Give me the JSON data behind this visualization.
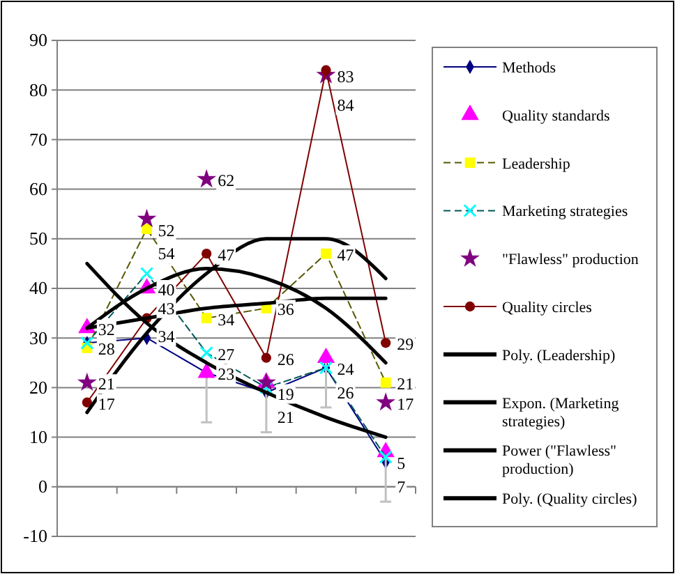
{
  "chart_data": {
    "type": "line",
    "categories": [
      null,
      null,
      null,
      null,
      null,
      null
    ],
    "ylim": [
      -10,
      90
    ],
    "yticks": [
      -10,
      0,
      10,
      20,
      30,
      40,
      50,
      60,
      70,
      80,
      90
    ],
    "grid": "y",
    "legend": "right",
    "series": [
      {
        "name": "Methods",
        "type": "line",
        "color": "#000080",
        "marker": "diamond",
        "line_style": "solid",
        "values": [
          29,
          30,
          23,
          19,
          24,
          5
        ],
        "value_labels": [
          null,
          null,
          null,
          "19",
          "24",
          "5"
        ]
      },
      {
        "name": "Quality standards",
        "type": "scatter",
        "color": "#ff00ff",
        "marker": "triangle",
        "values": [
          32,
          40,
          23,
          21,
          26,
          7
        ],
        "value_labels": [
          "32",
          "40",
          "23",
          "21",
          "26",
          "7"
        ],
        "errors": [
          null,
          null,
          [
            13,
            23
          ],
          [
            11,
            21
          ],
          [
            16,
            26
          ],
          [
            -3,
            7
          ]
        ]
      },
      {
        "name": "Leadership",
        "type": "line",
        "color": "#ffff00",
        "marker": "square",
        "line_style": "dashed",
        "values": [
          28,
          52,
          34,
          36,
          47,
          21
        ],
        "value_labels": [
          "28",
          "52",
          "34",
          "36",
          "47",
          "21"
        ]
      },
      {
        "name": "Marketing strategies",
        "type": "line",
        "color": "#00ffff",
        "marker": "cross",
        "line_style": "dashed",
        "values": [
          29,
          43,
          27,
          20,
          24,
          6
        ],
        "value_labels": [
          null,
          "43",
          "27",
          null,
          null,
          null
        ]
      },
      {
        "name": "\"Flawless\" production",
        "type": "scatter",
        "color": "#800080",
        "marker": "star",
        "values": [
          21,
          54,
          62,
          21,
          83,
          17
        ],
        "value_labels": [
          "21",
          "54",
          "62",
          null,
          "83",
          "17"
        ]
      },
      {
        "name": "Quality circles",
        "type": "line",
        "color": "#800000",
        "marker": "circle",
        "line_style": "solid",
        "values": [
          17,
          34,
          47,
          26,
          84,
          29
        ],
        "value_labels": [
          "17",
          "34",
          "47",
          "26",
          "84",
          "29"
        ]
      },
      {
        "name": "Poly. (Leadership)",
        "type": "line",
        "color": "#000000",
        "marker": "none",
        "line_style": "solid",
        "values": [
          32,
          40,
          44,
          42,
          36,
          25
        ]
      },
      {
        "name": "Expon. (Marketing strategies)",
        "type": "line",
        "color": "#000000",
        "marker": "none",
        "line_style": "solid",
        "values": [
          45,
          33,
          25,
          19,
          14,
          10
        ]
      },
      {
        "name": "Power (\"Flawless\" production)",
        "type": "line",
        "color": "#000000",
        "marker": "none",
        "line_style": "solid",
        "values": [
          32,
          34,
          36,
          37,
          38,
          38
        ]
      },
      {
        "name": "Poly. (Quality circles)",
        "type": "line",
        "color": "#000000",
        "marker": "none",
        "line_style": "solid",
        "values": [
          15,
          31,
          43,
          50,
          50,
          42
        ]
      }
    ]
  }
}
